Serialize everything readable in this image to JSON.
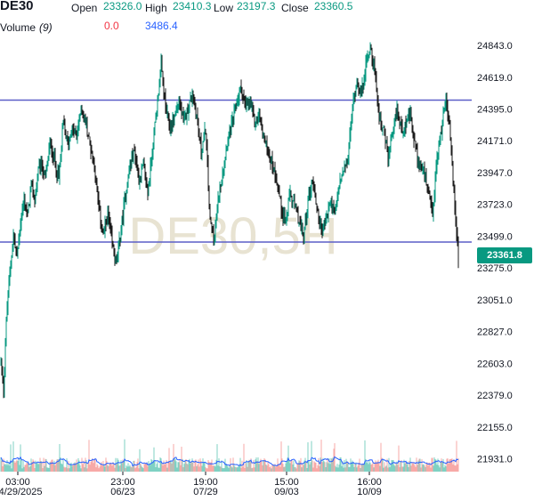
{
  "header": {
    "symbol": "DE30",
    "open_label": "Open",
    "open_value": "23326.0",
    "high_label": "High",
    "high_value": "23410.3",
    "low_label": "Low",
    "low_value": "23197.3",
    "close_label": "Close",
    "close_value": "23360.5",
    "volume_label": "Volume",
    "volume_param": "(9)",
    "volume_value": "0.0",
    "volume_ma_value": "3486.4"
  },
  "watermark": "DE30,5H",
  "last_price_label": "23361.8",
  "colors": {
    "up": "#089981",
    "down": "#f23645",
    "hline": "#5b5fc7",
    "vol_ma": "#2962ff",
    "watermark": "#e8e3d2"
  },
  "chart_data": {
    "type": "candlestick",
    "ylim": [
      21840,
      24950
    ],
    "y_ticks": [
      "24843.0",
      "24619.0",
      "24395.0",
      "24171.0",
      "23947.0",
      "23723.0",
      "23499.0",
      "23275.0",
      "23051.0",
      "22827.0",
      "22603.0",
      "22379.0",
      "22155.0",
      "21931.0"
    ],
    "x_ticks": [
      {
        "time": "03:00",
        "date": "04/29/2025"
      },
      {
        "time": "23:00",
        "date": "06/23"
      },
      {
        "time": "19:00",
        "date": "07/29"
      },
      {
        "time": "15:00",
        "date": "09/03"
      },
      {
        "time": "16:00",
        "date": "10/09"
      }
    ],
    "horizontal_lines": [
      24458,
      23458
    ],
    "last_price": 23361.8,
    "close_path": [
      [
        0,
        22620
      ],
      [
        3,
        22420
      ],
      [
        6,
        22900
      ],
      [
        10,
        23250
      ],
      [
        14,
        23500
      ],
      [
        18,
        23350
      ],
      [
        22,
        23600
      ],
      [
        26,
        23750
      ],
      [
        30,
        23640
      ],
      [
        34,
        23850
      ],
      [
        38,
        23760
      ],
      [
        42,
        23950
      ],
      [
        46,
        24000
      ],
      [
        50,
        23900
      ],
      [
        55,
        24150
      ],
      [
        60,
        24050
      ],
      [
        65,
        23900
      ],
      [
        70,
        24300
      ],
      [
        75,
        24150
      ],
      [
        80,
        24250
      ],
      [
        85,
        24200
      ],
      [
        90,
        24400
      ],
      [
        95,
        24300
      ],
      [
        100,
        24150
      ],
      [
        105,
        24000
      ],
      [
        110,
        23700
      ],
      [
        115,
        23500
      ],
      [
        120,
        23650
      ],
      [
        125,
        23450
      ],
      [
        130,
        23300
      ],
      [
        135,
        23550
      ],
      [
        140,
        23800
      ],
      [
        145,
        24000
      ],
      [
        150,
        24100
      ],
      [
        155,
        23900
      ],
      [
        160,
        24000
      ],
      [
        165,
        23800
      ],
      [
        170,
        24100
      ],
      [
        175,
        24400
      ],
      [
        180,
        24700
      ],
      [
        185,
        24400
      ],
      [
        190,
        24250
      ],
      [
        195,
        24350
      ],
      [
        200,
        24450
      ],
      [
        205,
        24300
      ],
      [
        210,
        24400
      ],
      [
        215,
        24500
      ],
      [
        220,
        24350
      ],
      [
        225,
        24100
      ],
      [
        230,
        24250
      ],
      [
        235,
        23600
      ],
      [
        240,
        23500
      ],
      [
        245,
        23800
      ],
      [
        250,
        24000
      ],
      [
        255,
        24200
      ],
      [
        260,
        24300
      ],
      [
        265,
        24450
      ],
      [
        270,
        24550
      ],
      [
        275,
        24400
      ],
      [
        280,
        24450
      ],
      [
        285,
        24300
      ],
      [
        290,
        24350
      ],
      [
        295,
        24200
      ],
      [
        300,
        24100
      ],
      [
        305,
        24000
      ],
      [
        310,
        23900
      ],
      [
        315,
        23700
      ],
      [
        320,
        23600
      ],
      [
        325,
        23800
      ],
      [
        330,
        23700
      ],
      [
        335,
        23600
      ],
      [
        340,
        23500
      ],
      [
        345,
        23750
      ],
      [
        350,
        23900
      ],
      [
        355,
        23700
      ],
      [
        360,
        23550
      ],
      [
        365,
        23600
      ],
      [
        370,
        23750
      ],
      [
        375,
        23650
      ],
      [
        380,
        23850
      ],
      [
        385,
        23950
      ],
      [
        390,
        24050
      ],
      [
        395,
        24400
      ],
      [
        400,
        24600
      ],
      [
        405,
        24500
      ],
      [
        410,
        24700
      ],
      [
        415,
        24850
      ],
      [
        420,
        24650
      ],
      [
        425,
        24350
      ],
      [
        430,
        24250
      ],
      [
        435,
        24050
      ],
      [
        440,
        24200
      ],
      [
        445,
        24400
      ],
      [
        450,
        24250
      ],
      [
        455,
        24300
      ],
      [
        460,
        24350
      ],
      [
        465,
        24150
      ],
      [
        470,
        24000
      ],
      [
        475,
        23950
      ],
      [
        480,
        23800
      ],
      [
        485,
        23650
      ],
      [
        490,
        24050
      ],
      [
        495,
        24250
      ],
      [
        500,
        24500
      ],
      [
        505,
        24200
      ],
      [
        508,
        23900
      ],
      [
        511,
        23600
      ],
      [
        514,
        23340
      ]
    ],
    "volume_ylim": [
      0,
      25000
    ]
  }
}
